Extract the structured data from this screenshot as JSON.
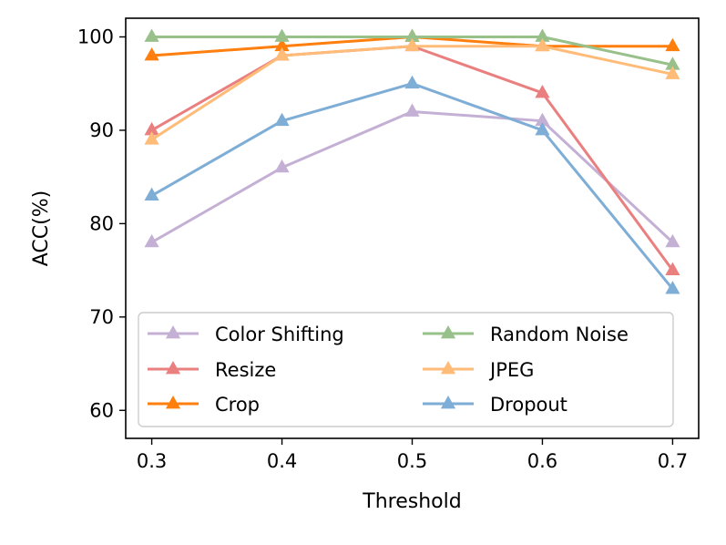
{
  "chart_data": {
    "type": "line",
    "title": "",
    "xlabel": "Threshold",
    "ylabel": "ACC(%)",
    "x": [
      0.3,
      0.4,
      0.5,
      0.6,
      0.7
    ],
    "x_tick_labels": [
      "0.3",
      "0.4",
      "0.5",
      "0.6",
      "0.7"
    ],
    "y_ticks": [
      60,
      70,
      80,
      90,
      100
    ],
    "y_tick_labels": [
      "60",
      "70",
      "80",
      "90",
      "100"
    ],
    "xlim": [
      0.28,
      0.72
    ],
    "ylim": [
      57,
      102
    ],
    "grid": false,
    "legend_position": "lower-center",
    "marker": "triangle-up",
    "series": [
      {
        "name": "Color Shifting",
        "color": "#c5b0d5",
        "values": [
          78,
          86,
          92,
          91,
          78
        ]
      },
      {
        "name": "Resize",
        "color": "#ea7f7f",
        "values": [
          90,
          98,
          99,
          94,
          75
        ]
      },
      {
        "name": "Crop",
        "color": "#ff7f0e",
        "values": [
          98,
          99,
          100,
          99,
          99
        ]
      },
      {
        "name": "Random Noise",
        "color": "#98c08a",
        "values": [
          100,
          100,
          100,
          100,
          97
        ]
      },
      {
        "name": "JPEG",
        "color": "#ffbb78",
        "values": [
          89,
          98,
          99,
          99,
          96
        ]
      },
      {
        "name": "Dropout",
        "color": "#7eadd6",
        "values": [
          83,
          91,
          95,
          90,
          73
        ]
      }
    ]
  }
}
